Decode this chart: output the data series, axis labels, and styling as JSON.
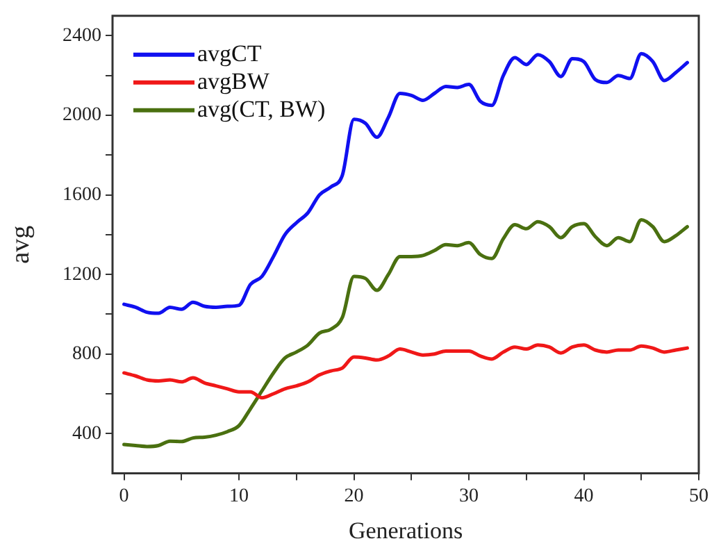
{
  "chart_data": {
    "type": "line",
    "xlabel": "Generations",
    "ylabel": "avg",
    "x": [
      0,
      1,
      2,
      3,
      4,
      5,
      6,
      7,
      8,
      9,
      10,
      11,
      12,
      13,
      14,
      15,
      16,
      17,
      18,
      19,
      20,
      21,
      22,
      23,
      24,
      25,
      26,
      27,
      28,
      29,
      30,
      31,
      32,
      33,
      34,
      35,
      36,
      37,
      38,
      39,
      40,
      41,
      42,
      43,
      44,
      45,
      46,
      47,
      48,
      49
    ],
    "series": [
      {
        "name": "avgCT",
        "color": "#1010f0",
        "values": [
          1050,
          1035,
          1010,
          1005,
          1035,
          1025,
          1060,
          1040,
          1035,
          1040,
          1045,
          1150,
          1190,
          1290,
          1400,
          1460,
          1510,
          1600,
          1640,
          1700,
          1980,
          1960,
          1890,
          1990,
          2110,
          2100,
          2075,
          2110,
          2145,
          2140,
          2155,
          2070,
          2050,
          2200,
          2290,
          2255,
          2305,
          2270,
          2195,
          2285,
          2270,
          2180,
          2165,
          2200,
          2185,
          2310,
          2270,
          2175,
          2215,
          2265
        ]
      },
      {
        "name": "avgBW",
        "color": "#f01818",
        "values": [
          705,
          690,
          670,
          665,
          670,
          660,
          680,
          655,
          640,
          625,
          610,
          610,
          580,
          600,
          625,
          640,
          660,
          695,
          715,
          730,
          785,
          780,
          770,
          790,
          825,
          810,
          795,
          800,
          815,
          815,
          815,
          790,
          775,
          810,
          835,
          825,
          845,
          835,
          805,
          835,
          845,
          820,
          810,
          820,
          820,
          840,
          830,
          810,
          820,
          830
        ]
      },
      {
        "name": "avg(CT, BW)",
        "color": "#4a7010",
        "values": [
          345,
          340,
          335,
          340,
          362,
          360,
          378,
          382,
          392,
          410,
          440,
          525,
          615,
          705,
          780,
          810,
          845,
          905,
          925,
          985,
          1190,
          1180,
          1120,
          1200,
          1290,
          1290,
          1295,
          1320,
          1350,
          1345,
          1360,
          1300,
          1280,
          1380,
          1450,
          1430,
          1465,
          1440,
          1385,
          1440,
          1455,
          1390,
          1345,
          1385,
          1365,
          1475,
          1440,
          1365,
          1395,
          1440
        ]
      }
    ],
    "xlim": [
      -1,
      50
    ],
    "ylim": [
      200,
      2500
    ],
    "xticks": [
      0,
      {
        "value": 5,
        "label": null
      },
      10,
      {
        "value": 15,
        "label": null
      },
      20,
      {
        "value": 25,
        "label": null
      },
      30,
      {
        "value": 35,
        "label": null
      },
      40,
      {
        "value": 45,
        "label": null
      },
      50
    ],
    "yticks": [
      400,
      {
        "value": 600,
        "label": null
      },
      800,
      {
        "value": 1000,
        "label": null
      },
      1200,
      {
        "value": 1400,
        "label": null
      },
      1600,
      {
        "value": 1800,
        "label": null
      },
      2000,
      {
        "value": 2200,
        "label": null
      },
      2400
    ],
    "grid": false,
    "legend": "top left",
    "marker": "none",
    "line_style": "solid"
  }
}
